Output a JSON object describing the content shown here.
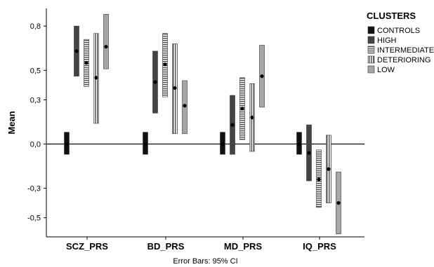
{
  "chart_data": {
    "type": "error_bar",
    "ylabel": "Mean",
    "footnote": "Error Bars: 95% CI",
    "legend_title": "CLUSTERS",
    "legend_position": "top-right",
    "categories": [
      "SCZ_PRS",
      "BD_PRS",
      "MD_PRS",
      "IQ_PRS"
    ],
    "y_ticks": [
      0.8,
      0.5,
      0.3,
      0.0,
      -0.3,
      -0.5
    ],
    "y_tick_labels": [
      "0,8",
      "0,5",
      "0,3",
      "0,0",
      "-0,3",
      "-0,5"
    ],
    "ylim": [
      -0.63,
      0.92
    ],
    "reference_line": 0.0,
    "series": [
      {
        "name": "CONTROLS",
        "color": "#111111",
        "fill": "solid-black",
        "mean": [
          0.0,
          0.0,
          0.0,
          0.0
        ],
        "ci_low": [
          -0.07,
          -0.07,
          -0.07,
          -0.07
        ],
        "ci_high": [
          0.08,
          0.08,
          0.08,
          0.08
        ]
      },
      {
        "name": "HIGH",
        "color": "#444444",
        "fill": "solid-dark-gray",
        "mean": [
          0.63,
          0.42,
          0.13,
          -0.06
        ],
        "ci_low": [
          0.46,
          0.21,
          -0.07,
          -0.25
        ],
        "ci_high": [
          0.8,
          0.63,
          0.33,
          0.13
        ]
      },
      {
        "name": "INTERMEDIATE",
        "color": "#555555",
        "fill": "horizontal-stripes",
        "mean": [
          0.55,
          0.54,
          0.24,
          -0.24
        ],
        "ci_low": [
          0.39,
          0.32,
          0.03,
          -0.43
        ],
        "ci_high": [
          0.71,
          0.75,
          0.45,
          -0.04
        ]
      },
      {
        "name": "DETERIORING",
        "color": "#555555",
        "fill": "vertical-stripes",
        "mean": [
          0.45,
          0.38,
          0.18,
          -0.17
        ],
        "ci_low": [
          0.14,
          0.07,
          -0.05,
          -0.4
        ],
        "ci_high": [
          0.75,
          0.68,
          0.41,
          0.06
        ]
      },
      {
        "name": "LOW",
        "color": "#a6a6a6",
        "fill": "solid-light-gray",
        "mean": [
          0.66,
          0.26,
          0.46,
          -0.4
        ],
        "ci_low": [
          0.51,
          0.07,
          0.25,
          -0.61
        ],
        "ci_high": [
          0.88,
          0.43,
          0.67,
          -0.19
        ]
      }
    ]
  }
}
